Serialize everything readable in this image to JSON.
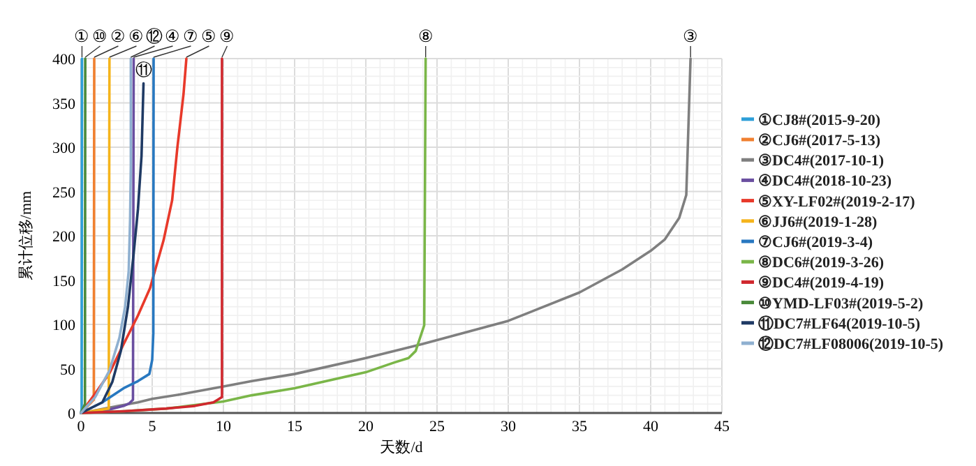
{
  "chart_data": {
    "type": "line",
    "xlabel": "天数/d",
    "ylabel": "累计位移/mm",
    "xlim": [
      0,
      45
    ],
    "ylim": [
      0,
      400
    ],
    "xticks": [
      0,
      5,
      10,
      15,
      20,
      25,
      30,
      35,
      40,
      45
    ],
    "yticks": [
      0,
      50,
      100,
      150,
      200,
      250,
      300,
      350,
      400
    ],
    "grid": true,
    "legend": "right",
    "marker": "none",
    "line_style": "solid",
    "series": [
      {
        "name": "①CJ8#(2015-9-20)",
        "color": "#2e9fd8",
        "x": [
          0,
          0.05,
          0.07
        ],
        "values": [
          0,
          5,
          400
        ]
      },
      {
        "name": "②CJ6#(2017-5-13)",
        "color": "#f08030",
        "x": [
          0,
          0.9,
          0.93
        ],
        "values": [
          0,
          15,
          400
        ]
      },
      {
        "name": "③DC4#(2017-10-1)",
        "color": "#7f7f7f",
        "x": [
          0,
          1,
          2,
          3,
          4,
          5,
          7,
          10,
          12,
          15,
          20,
          24,
          30,
          35,
          38,
          40,
          41,
          42,
          42.5,
          42.8
        ],
        "values": [
          0,
          3,
          6,
          9,
          12,
          16,
          21,
          30,
          36,
          44,
          62,
          78,
          104,
          136,
          162,
          183,
          196,
          220,
          246,
          400
        ]
      },
      {
        "name": "④DC4#(2018-10-23)",
        "color": "#6a4fa0",
        "x": [
          0,
          2,
          3,
          3.4,
          3.65,
          3.7
        ],
        "values": [
          0,
          4,
          8,
          11,
          15,
          400
        ]
      },
      {
        "name": "⑤XY-LF02#(2019-2-17)",
        "color": "#e8392a",
        "x": [
          0,
          1,
          2,
          3,
          4,
          4.85,
          5.8,
          6.4,
          6.77,
          7.2,
          7.4
        ],
        "values": [
          0,
          22,
          45,
          78,
          110,
          141,
          195,
          240,
          300,
          360,
          400
        ]
      },
      {
        "name": "⑥JJ6#(2019-1-28)",
        "color": "#f5b41c",
        "x": [
          0,
          1.95,
          2.0
        ],
        "values": [
          0,
          5,
          400
        ]
      },
      {
        "name": "⑦CJ6#(2019-3-4)",
        "color": "#2878c0",
        "x": [
          0,
          1.5,
          3,
          4,
          4.8,
          5.0,
          5.08,
          5.1
        ],
        "values": [
          0,
          12,
          28,
          36,
          44,
          60,
          90,
          400
        ]
      },
      {
        "name": "⑧DC6#(2019-3-26)",
        "color": "#7ab648",
        "x": [
          0,
          3,
          6,
          10,
          12,
          15,
          20,
          22,
          23,
          23.5,
          24.1,
          24.2
        ],
        "values": [
          0,
          2,
          5,
          13,
          20,
          28,
          46,
          57,
          62,
          70,
          99,
          400
        ]
      },
      {
        "name": "⑨DC4#(2019-4-19)",
        "color": "#d0282e",
        "x": [
          0,
          3,
          6,
          8,
          9.3,
          9.7,
          9.9,
          9.9
        ],
        "values": [
          0,
          2,
          5,
          8,
          12,
          16,
          18,
          400
        ]
      },
      {
        "name": "⑩YMD-LF03#(2019-5-2)",
        "color": "#4a8a3a",
        "x": [
          0,
          0.28,
          0.3
        ],
        "values": [
          0,
          10,
          400
        ]
      },
      {
        "name": "⑪DC7#LF64(2019-10-5)",
        "color": "#1f3a64",
        "x": [
          0,
          1.5,
          2.2,
          2.8,
          3.3,
          3.7,
          4.0,
          4.25,
          4.39
        ],
        "values": [
          0,
          12,
          35,
          70,
          120,
          180,
          230,
          290,
          372
        ]
      },
      {
        "name": "⑫DC7#LF08006(2019-10-5)",
        "color": "#8fb0d0",
        "x": [
          0,
          1,
          2,
          2.7,
          3.1,
          3.35,
          3.45,
          3.5,
          3.5
        ],
        "values": [
          0,
          18,
          48,
          85,
          120,
          160,
          220,
          280,
          400
        ]
      }
    ],
    "annotations": [
      {
        "text": "①",
        "x": 0.07,
        "y": 400
      },
      {
        "text": "⑩",
        "x": 0.3,
        "y": 400
      },
      {
        "text": "②",
        "x": 0.93,
        "y": 400
      },
      {
        "text": "⑥",
        "x": 2.0,
        "y": 400
      },
      {
        "text": "⑫",
        "x": 3.5,
        "y": 400
      },
      {
        "text": "④",
        "x": 3.7,
        "y": 400
      },
      {
        "text": "⑪",
        "x": 4.39,
        "y": 372
      },
      {
        "text": "⑦",
        "x": 5.1,
        "y": 400
      },
      {
        "text": "⑤",
        "x": 7.4,
        "y": 400
      },
      {
        "text": "⑨",
        "x": 9.9,
        "y": 400
      },
      {
        "text": "⑧",
        "x": 24.2,
        "y": 400
      },
      {
        "text": "③",
        "x": 42.8,
        "y": 400
      }
    ]
  }
}
